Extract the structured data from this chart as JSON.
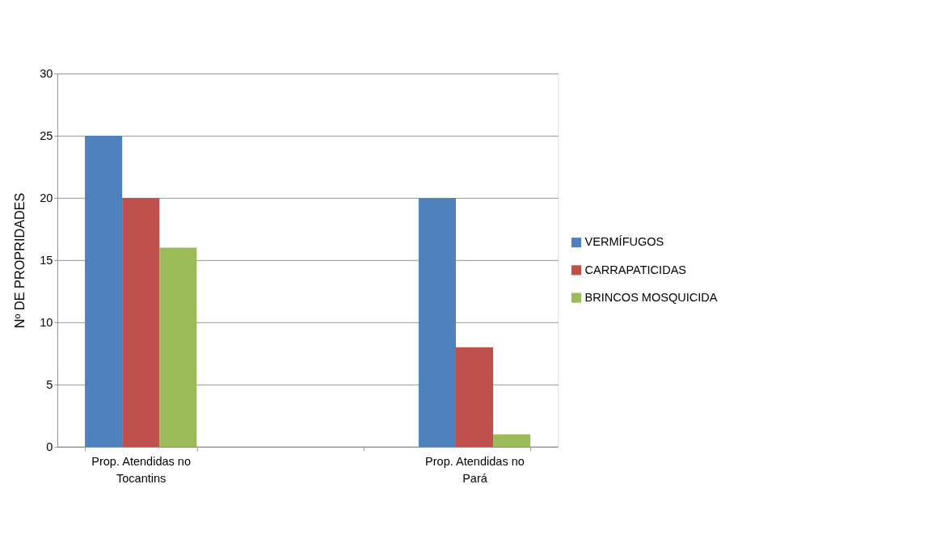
{
  "chart_data": {
    "type": "bar",
    "ylabel": "Nº DE PROPRIDADES",
    "categories": [
      "Prop. Atendidas no Tocantins",
      null,
      "Prop. Atendidas no Pará"
    ],
    "series": [
      {
        "name": "VERMÍFUGOS",
        "color": "#4f81bd",
        "values": [
          25,
          null,
          20
        ]
      },
      {
        "name": "CARRAPATICIDAS",
        "color": "#c0504d",
        "values": [
          20,
          null,
          8
        ]
      },
      {
        "name": "BRINCOS MOSQUICIDA",
        "color": "#9bbb59",
        "values": [
          16,
          null,
          1
        ]
      }
    ],
    "ylim": [
      0,
      30
    ],
    "yticks": [
      0,
      5,
      10,
      15,
      20,
      25,
      30
    ],
    "grid": "y",
    "legend": "right"
  }
}
